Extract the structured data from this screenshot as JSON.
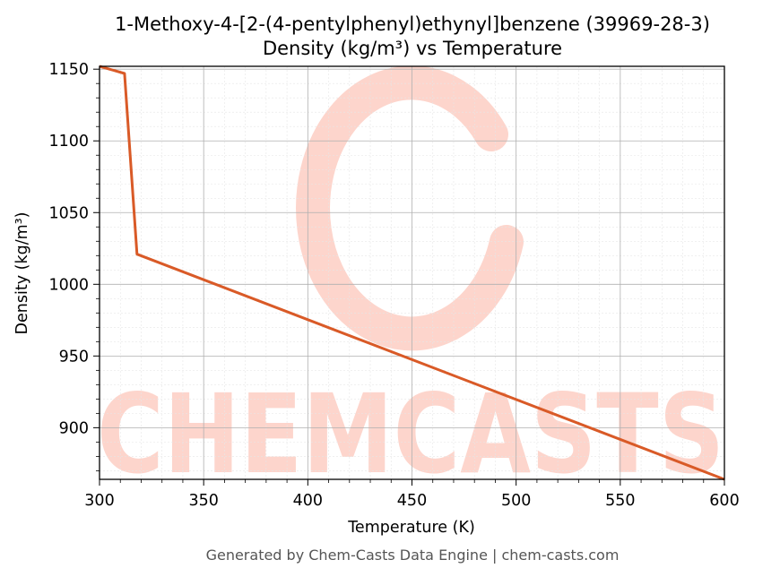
{
  "chart_data": {
    "type": "line",
    "title": "1-Methoxy-4-[2-(4-pentylphenyl)ethynyl]benzene (39969-28-3)",
    "subtitle": "Density (kg/m³) vs Temperature",
    "xlabel": "Temperature (K)",
    "ylabel": "Density (kg/m³)",
    "xlim": [
      300,
      600
    ],
    "ylim": [
      864,
      1152
    ],
    "xticks": [
      300,
      350,
      400,
      450,
      500,
      550,
      600
    ],
    "yticks": [
      900,
      950,
      1000,
      1050,
      1100,
      1150
    ],
    "grid": true,
    "series": [
      {
        "color": "#d95a27",
        "x": [
          300,
          312,
          318,
          600
        ],
        "y": [
          1152,
          1147,
          1021,
          864
        ]
      }
    ]
  },
  "watermark": {
    "text": "CHEMCASTS",
    "color": "#fdd5cc"
  },
  "footer": "Generated by Chem-Casts Data Engine | chem-casts.com"
}
